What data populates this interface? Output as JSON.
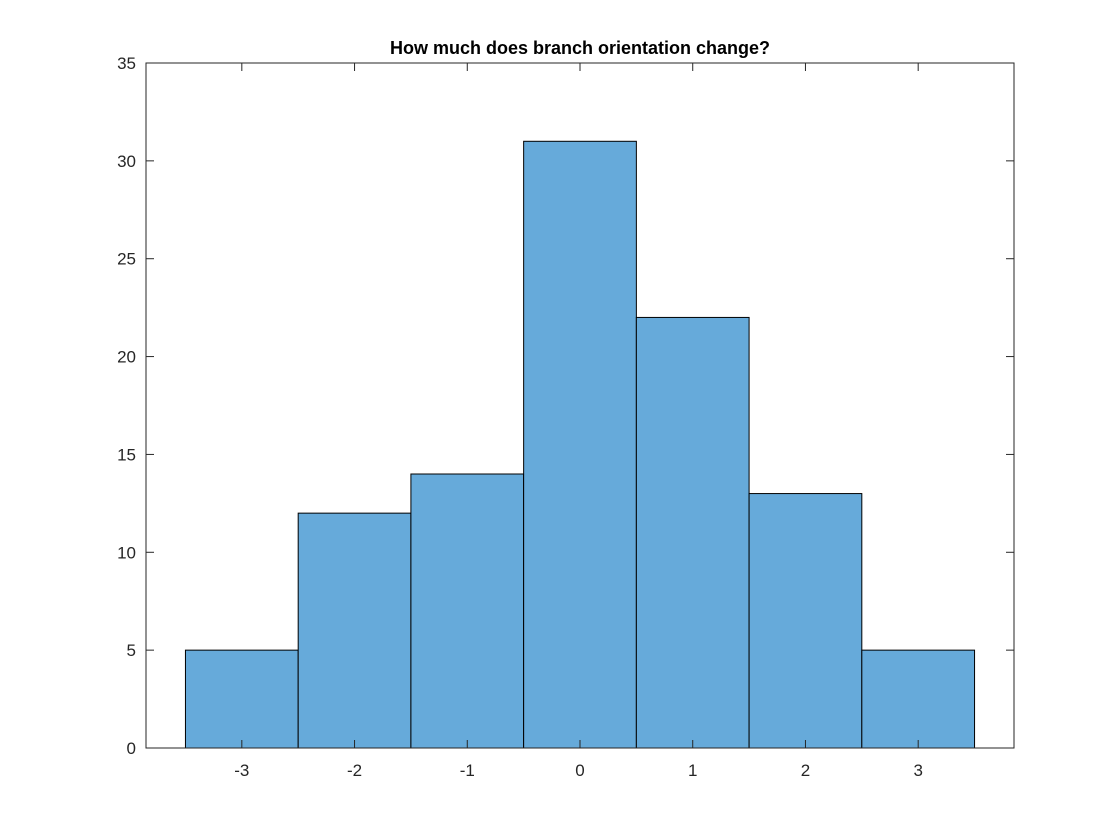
{
  "chart_data": {
    "type": "bar",
    "title": "How much does branch orientation change?",
    "xlabel": "",
    "ylabel": "",
    "categories": [
      "-3",
      "-2",
      "-1",
      "0",
      "1",
      "2",
      "3"
    ],
    "x": [
      -3,
      -2,
      -1,
      0,
      1,
      2,
      3
    ],
    "values": [
      5,
      12,
      14,
      31,
      22,
      13,
      5
    ],
    "bin_width": 1,
    "xlim": [
      -3.85,
      3.85
    ],
    "ylim": [
      0,
      35
    ],
    "xticks": [
      -3,
      -2,
      -1,
      0,
      1,
      2,
      3
    ],
    "yticks": [
      0,
      5,
      10,
      15,
      20,
      25,
      30,
      35
    ],
    "grid": false,
    "legend": "none",
    "bar_color": "#66AADA",
    "edge_color": "#000000"
  }
}
